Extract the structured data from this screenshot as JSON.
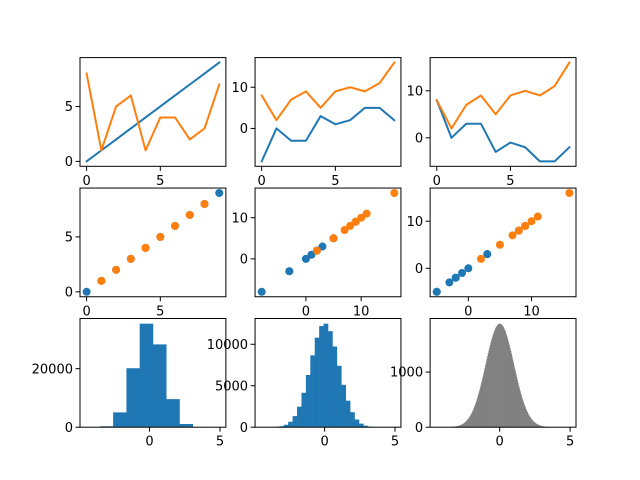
{
  "colors": {
    "C0": "#1f77b4",
    "C1": "#ff7f0e",
    "gray": "#808080",
    "axes": "#000000",
    "background": "#ffffff"
  },
  "chart_data": [
    {
      "type": "line",
      "xlim": [
        -0.45,
        9.45
      ],
      "ylim": [
        -0.45,
        9.45
      ],
      "xticks": [
        0,
        5
      ],
      "yticks": [
        0,
        5
      ],
      "x": [
        0,
        1,
        2,
        3,
        4,
        5,
        6,
        7,
        8,
        9
      ],
      "series": [
        {
          "color": "#1f77b4",
          "values": [
            0,
            1,
            2,
            3,
            4,
            5,
            6,
            7,
            8,
            9
          ]
        },
        {
          "color": "#ff7f0e",
          "values": [
            8,
            1,
            5,
            6,
            1,
            4,
            4,
            2,
            3,
            7
          ]
        }
      ]
    },
    {
      "type": "line",
      "xlim": [
        -0.45,
        9.45
      ],
      "ylim": [
        -9.2,
        17.2
      ],
      "xticks": [
        0,
        5
      ],
      "yticks": [
        0,
        10
      ],
      "x": [
        0,
        1,
        2,
        3,
        4,
        5,
        6,
        7,
        8,
        9
      ],
      "series": [
        {
          "color": "#1f77b4",
          "values": [
            -8,
            0,
            -3,
            -3,
            3,
            1,
            2,
            5,
            5,
            2
          ]
        },
        {
          "color": "#ff7f0e",
          "values": [
            8,
            2,
            7,
            9,
            5,
            9,
            10,
            9,
            11,
            16
          ]
        }
      ]
    },
    {
      "type": "line",
      "xlim": [
        -0.45,
        9.45
      ],
      "ylim": [
        -6.05,
        17.05
      ],
      "xticks": [
        0,
        5
      ],
      "yticks": [
        0,
        10
      ],
      "x": [
        0,
        1,
        2,
        3,
        4,
        5,
        6,
        7,
        8,
        9
      ],
      "series": [
        {
          "color": "#1f77b4",
          "values": [
            8,
            0,
            3,
            3,
            -3,
            -1,
            -2,
            -5,
            -5,
            -2
          ]
        },
        {
          "color": "#ff7f0e",
          "values": [
            8,
            2,
            7,
            9,
            5,
            9,
            10,
            9,
            11,
            16
          ]
        }
      ]
    },
    {
      "type": "scatter",
      "xlim": [
        -0.45,
        9.45
      ],
      "ylim": [
        -0.45,
        9.45
      ],
      "xticks": [
        0,
        5
      ],
      "yticks": [
        0,
        5
      ],
      "series": [
        {
          "color": "#1f77b4",
          "x": [
            0,
            1,
            2,
            3,
            4,
            5,
            6,
            7,
            8,
            9
          ],
          "y": [
            0,
            1,
            2,
            3,
            4,
            5,
            6,
            7,
            8,
            9
          ]
        },
        {
          "color": "#ff7f0e",
          "x": [
            8,
            1,
            5,
            6,
            1,
            4,
            4,
            2,
            3,
            7
          ],
          "y": [
            8,
            1,
            5,
            6,
            1,
            4,
            4,
            2,
            3,
            7
          ]
        }
      ]
    },
    {
      "type": "scatter",
      "xlim": [
        -9.2,
        17.2
      ],
      "ylim": [
        -9.2,
        17.2
      ],
      "xticks": [
        0,
        10
      ],
      "yticks": [
        0,
        10
      ],
      "series": [
        {
          "color": "#1f77b4",
          "x": [
            -8,
            0,
            -3,
            -3,
            3,
            1,
            2,
            5,
            5,
            2
          ],
          "y": [
            -8,
            0,
            -3,
            -3,
            3,
            1,
            2,
            5,
            5,
            2
          ]
        },
        {
          "color": "#ff7f0e",
          "x": [
            8,
            2,
            7,
            9,
            5,
            9,
            10,
            9,
            11,
            16
          ],
          "y": [
            8,
            2,
            7,
            9,
            5,
            9,
            10,
            9,
            11,
            16
          ]
        }
      ]
    },
    {
      "type": "scatter",
      "xlim": [
        -6.05,
        17.05
      ],
      "ylim": [
        -6.05,
        17.05
      ],
      "xticks": [
        0,
        10
      ],
      "yticks": [
        0,
        10
      ],
      "series": [
        {
          "color": "#1f77b4",
          "x": [
            8,
            0,
            3,
            3,
            -3,
            -1,
            -2,
            -5,
            -5,
            -2
          ],
          "y": [
            8,
            0,
            3,
            3,
            -3,
            -1,
            -2,
            -5,
            -5,
            -2
          ]
        },
        {
          "color": "#ff7f0e",
          "x": [
            8,
            2,
            7,
            9,
            5,
            9,
            10,
            9,
            11,
            16
          ],
          "y": [
            8,
            2,
            7,
            9,
            5,
            9,
            10,
            9,
            11,
            16
          ]
        }
      ]
    },
    {
      "type": "bar",
      "histogram": true,
      "xlim": [
        -4.94,
        5.42
      ],
      "ylim": [
        0,
        37150
      ],
      "xticks": [
        0,
        5
      ],
      "yticks": [
        0,
        20000
      ],
      "bin_range": [
        -4.47,
        4.95
      ],
      "color": "#1f77b4",
      "counts": [
        8,
        311,
        5070,
        20150,
        35380,
        28300,
        9590,
        1090,
        50,
        1
      ]
    },
    {
      "type": "bar",
      "histogram": true,
      "xlim": [
        -4.94,
        5.42
      ],
      "ylim": [
        0,
        13110
      ],
      "xticks": [
        0,
        5
      ],
      "yticks": [
        0,
        5000,
        10000
      ],
      "bin_range": [
        -4.47,
        4.95
      ],
      "color": "#1f77b4",
      "counts": [
        1,
        4,
        14,
        43,
        117,
        291,
        656,
        1338,
        2474,
        4147,
        6296,
        8663,
        10798,
        12198,
        12484,
        11578,
        9729,
        7408,
        5111,
        3196,
        1810,
        929,
        432,
        182,
        70,
        24,
        8,
        2,
        0,
        1
      ]
    },
    {
      "type": "bar",
      "histogram": true,
      "xlim": [
        -4.94,
        5.42
      ],
      "ylim": [
        0,
        1973
      ],
      "xticks": [
        0,
        5
      ],
      "yticks": [
        0,
        1000
      ],
      "bin_range": [
        -4.47,
        4.95
      ],
      "color": "#808080",
      "counts": [
        0,
        0,
        0,
        0,
        0,
        0,
        0,
        0,
        0,
        1,
        1,
        1,
        1,
        1,
        1,
        2,
        2,
        2,
        3,
        3,
        4,
        5,
        6,
        7,
        8,
        9,
        10,
        12,
        14,
        16,
        19,
        22,
        25,
        29,
        33,
        37,
        43,
        49,
        55,
        62,
        70,
        79,
        89,
        100,
        112,
        125,
        140,
        155,
        172,
        191,
        211,
        232,
        256,
        281,
        307,
        336,
        366,
        398,
        432,
        468,
        505,
        545,
        586,
        629,
        674,
        720,
        768,
        817,
        867,
        918,
        971,
        1023,
        1077,
        1131,
        1184,
        1237,
        1290,
        1343,
        1394,
        1444,
        1493,
        1540,
        1584,
        1626,
        1666,
        1704,
        1737,
        1768,
        1795,
        1819,
        1839,
        1855,
        1867,
        1875,
        1879,
        1878,
        1874,
        1865,
        1852,
        1836,
        1815,
        1791,
        1763,
        1731,
        1697,
        1659,
        1619,
        1576,
        1530,
        1484,
        1435,
        1385,
        1333,
        1281,
        1227,
        1174,
        1119,
        1066,
        1012,
        960,
        908,
        857,
        805,
        757,
        709,
        663,
        619,
        576,
        537,
        498,
        460,
        426,
        392,
        360,
        330,
        302,
        276,
        251,
        228,
        207,
        188,
        169,
        153,
        137,
        123,
        110,
        98,
        87,
        78,
        69,
        61,
        54,
        47,
        42,
        37,
        32,
        28,
        24,
        21,
        18,
        16,
        14,
        12,
        10,
        9,
        7,
        6,
        5,
        5,
        4,
        3,
        3,
        2,
        2,
        2,
        1,
        1,
        1,
        1,
        1,
        1,
        0,
        0,
        0,
        0,
        0,
        0,
        0,
        0,
        0,
        0,
        0,
        0,
        0,
        0,
        0,
        0,
        0,
        0,
        1
      ]
    }
  ]
}
